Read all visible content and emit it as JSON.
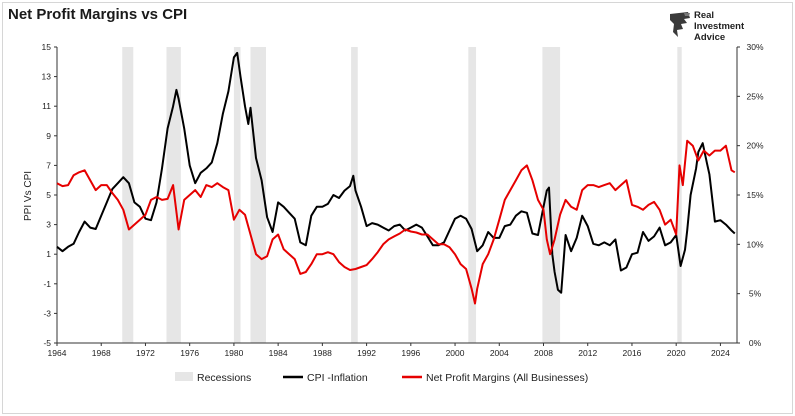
{
  "title": "Net Profit Margins vs CPI",
  "logo": {
    "line1": "Real",
    "line2": "Investment",
    "line3": "Advice"
  },
  "chart_data": {
    "type": "line",
    "title": "Net Profit Margins vs CPI",
    "ylabel": "PPI Vs CPI",
    "y2label": "",
    "xlim": [
      1964,
      2025.5
    ],
    "ylim": [
      -5,
      15
    ],
    "y2lim": [
      0,
      30
    ],
    "x_ticks": [
      1964,
      1968,
      1972,
      1976,
      1980,
      1984,
      1988,
      1992,
      1996,
      2000,
      2004,
      2008,
      2012,
      2016,
      2020,
      2024
    ],
    "y_ticks": [
      -5,
      -3,
      -1,
      1,
      3,
      5,
      7,
      9,
      11,
      13,
      15
    ],
    "y2_ticks": [
      "0%",
      "5%",
      "10%",
      "15%",
      "20%",
      "25%",
      "30%"
    ],
    "grid": false,
    "legend_position": "bottom",
    "recessions": [
      [
        1969.9,
        1970.9
      ],
      [
        1973.9,
        1975.2
      ],
      [
        1980.0,
        1980.6
      ],
      [
        1981.5,
        1982.9
      ],
      [
        1990.6,
        1991.2
      ],
      [
        2001.2,
        2001.9
      ],
      [
        2007.9,
        2009.5
      ],
      [
        2020.1,
        2020.5
      ]
    ],
    "series": [
      {
        "name": "Recessions",
        "type": "band",
        "color": "#e6e6e6"
      },
      {
        "name": "CPI -Inflation",
        "color": "#000000",
        "axis": "left",
        "points": [
          [
            1964,
            1.5
          ],
          [
            1964.5,
            1.2
          ],
          [
            1965,
            1.5
          ],
          [
            1965.5,
            1.7
          ],
          [
            1966,
            2.5
          ],
          [
            1966.5,
            3.2
          ],
          [
            1967,
            2.8
          ],
          [
            1967.5,
            2.7
          ],
          [
            1968,
            3.6
          ],
          [
            1968.5,
            4.5
          ],
          [
            1969,
            5.4
          ],
          [
            1969.5,
            5.8
          ],
          [
            1970,
            6.2
          ],
          [
            1970.5,
            5.8
          ],
          [
            1971,
            4.5
          ],
          [
            1971.5,
            4.2
          ],
          [
            1972,
            3.4
          ],
          [
            1972.5,
            3.3
          ],
          [
            1973,
            4.5
          ],
          [
            1973.5,
            6.8
          ],
          [
            1974,
            9.5
          ],
          [
            1974.5,
            11.0
          ],
          [
            1974.8,
            12.1
          ],
          [
            1975,
            11.5
          ],
          [
            1975.5,
            9.5
          ],
          [
            1976,
            7.0
          ],
          [
            1976.5,
            5.8
          ],
          [
            1977,
            6.5
          ],
          [
            1977.5,
            6.8
          ],
          [
            1978,
            7.2
          ],
          [
            1978.5,
            8.5
          ],
          [
            1979,
            10.5
          ],
          [
            1979.5,
            12.0
          ],
          [
            1980,
            14.3
          ],
          [
            1980.3,
            14.6
          ],
          [
            1980.6,
            13.0
          ],
          [
            1981,
            11.0
          ],
          [
            1981.3,
            9.8
          ],
          [
            1981.5,
            10.9
          ],
          [
            1982,
            7.5
          ],
          [
            1982.5,
            6.0
          ],
          [
            1983,
            3.5
          ],
          [
            1983.5,
            2.5
          ],
          [
            1984,
            4.5
          ],
          [
            1984.5,
            4.2
          ],
          [
            1985,
            3.8
          ],
          [
            1985.5,
            3.4
          ],
          [
            1986,
            1.8
          ],
          [
            1986.5,
            1.6
          ],
          [
            1987,
            3.6
          ],
          [
            1987.5,
            4.2
          ],
          [
            1988,
            4.2
          ],
          [
            1988.5,
            4.4
          ],
          [
            1989,
            5.0
          ],
          [
            1989.5,
            4.8
          ],
          [
            1990,
            5.3
          ],
          [
            1990.5,
            5.6
          ],
          [
            1990.8,
            6.3
          ],
          [
            1991,
            5.3
          ],
          [
            1991.5,
            4.2
          ],
          [
            1992,
            2.9
          ],
          [
            1992.5,
            3.1
          ],
          [
            1993,
            3.0
          ],
          [
            1993.5,
            2.8
          ],
          [
            1994,
            2.6
          ],
          [
            1994.5,
            2.9
          ],
          [
            1995,
            3.0
          ],
          [
            1995.5,
            2.6
          ],
          [
            1996,
            2.8
          ],
          [
            1996.5,
            3.0
          ],
          [
            1997,
            2.8
          ],
          [
            1997.5,
            2.2
          ],
          [
            1998,
            1.6
          ],
          [
            1998.5,
            1.6
          ],
          [
            1999,
            1.8
          ],
          [
            1999.5,
            2.6
          ],
          [
            2000,
            3.4
          ],
          [
            2000.5,
            3.6
          ],
          [
            2001,
            3.4
          ],
          [
            2001.5,
            2.7
          ],
          [
            2002,
            1.2
          ],
          [
            2002.5,
            1.6
          ],
          [
            2003,
            2.5
          ],
          [
            2003.5,
            2.1
          ],
          [
            2004,
            2.1
          ],
          [
            2004.5,
            2.9
          ],
          [
            2005,
            3.0
          ],
          [
            2005.5,
            3.6
          ],
          [
            2006,
            3.9
          ],
          [
            2006.5,
            3.8
          ],
          [
            2007,
            2.4
          ],
          [
            2007.5,
            2.3
          ],
          [
            2008,
            4.2
          ],
          [
            2008.3,
            5.3
          ],
          [
            2008.5,
            5.5
          ],
          [
            2008.8,
            1.0
          ],
          [
            2009,
            -0.2
          ],
          [
            2009.3,
            -1.4
          ],
          [
            2009.6,
            -1.6
          ],
          [
            2010,
            2.3
          ],
          [
            2010.5,
            1.2
          ],
          [
            2011,
            2.1
          ],
          [
            2011.5,
            3.6
          ],
          [
            2012,
            2.9
          ],
          [
            2012.5,
            1.7
          ],
          [
            2013,
            1.6
          ],
          [
            2013.5,
            1.8
          ],
          [
            2014,
            1.6
          ],
          [
            2014.5,
            2.0
          ],
          [
            2015,
            -0.1
          ],
          [
            2015.5,
            0.1
          ],
          [
            2016,
            1.0
          ],
          [
            2016.5,
            1.1
          ],
          [
            2017,
            2.5
          ],
          [
            2017.5,
            1.9
          ],
          [
            2018,
            2.2
          ],
          [
            2018.5,
            2.8
          ],
          [
            2019,
            1.6
          ],
          [
            2019.5,
            1.8
          ],
          [
            2020,
            2.3
          ],
          [
            2020.4,
            0.2
          ],
          [
            2020.8,
            1.3
          ],
          [
            2021,
            2.6
          ],
          [
            2021.3,
            5.0
          ],
          [
            2021.8,
            6.8
          ],
          [
            2022,
            7.9
          ],
          [
            2022.4,
            8.5
          ],
          [
            2022.8,
            7.1
          ],
          [
            2023,
            6.4
          ],
          [
            2023.5,
            3.2
          ],
          [
            2024,
            3.3
          ],
          [
            2024.5,
            3.0
          ],
          [
            2025,
            2.6
          ],
          [
            2025.3,
            2.4
          ]
        ]
      },
      {
        "name": "Net Profit Margins (All Businesses)",
        "color": "#e60000",
        "axis": "right",
        "points": [
          [
            1964,
            16.2
          ],
          [
            1964.5,
            15.9
          ],
          [
            1965,
            16.0
          ],
          [
            1965.5,
            17.0
          ],
          [
            1966,
            17.3
          ],
          [
            1966.5,
            17.5
          ],
          [
            1967,
            16.5
          ],
          [
            1967.5,
            15.5
          ],
          [
            1968,
            16.0
          ],
          [
            1968.5,
            16.0
          ],
          [
            1969,
            15.2
          ],
          [
            1969.5,
            14.5
          ],
          [
            1970,
            13.5
          ],
          [
            1970.5,
            11.5
          ],
          [
            1971,
            12.0
          ],
          [
            1971.5,
            12.5
          ],
          [
            1972,
            13.0
          ],
          [
            1972.5,
            14.5
          ],
          [
            1973,
            14.8
          ],
          [
            1973.5,
            14.5
          ],
          [
            1974,
            14.6
          ],
          [
            1974.5,
            16.0
          ],
          [
            1975,
            11.5
          ],
          [
            1975.5,
            14.5
          ],
          [
            1976,
            15.0
          ],
          [
            1976.5,
            15.5
          ],
          [
            1977,
            14.8
          ],
          [
            1977.5,
            16.0
          ],
          [
            1978,
            15.8
          ],
          [
            1978.5,
            16.2
          ],
          [
            1979,
            15.8
          ],
          [
            1979.5,
            15.5
          ],
          [
            1980,
            12.5
          ],
          [
            1980.5,
            13.5
          ],
          [
            1981,
            13.0
          ],
          [
            1981.5,
            11.0
          ],
          [
            1982,
            9.0
          ],
          [
            1982.5,
            8.5
          ],
          [
            1983,
            8.8
          ],
          [
            1983.5,
            10.5
          ],
          [
            1984,
            11.0
          ],
          [
            1984.5,
            9.5
          ],
          [
            1985,
            9.0
          ],
          [
            1985.5,
            8.5
          ],
          [
            1986,
            7.0
          ],
          [
            1986.5,
            7.2
          ],
          [
            1987,
            8.0
          ],
          [
            1987.5,
            9.0
          ],
          [
            1988,
            9.0
          ],
          [
            1988.5,
            9.2
          ],
          [
            1989,
            9.0
          ],
          [
            1989.5,
            8.2
          ],
          [
            1990,
            7.7
          ],
          [
            1990.5,
            7.4
          ],
          [
            1991,
            7.5
          ],
          [
            1991.5,
            7.7
          ],
          [
            1992,
            7.9
          ],
          [
            1992.5,
            8.5
          ],
          [
            1993,
            9.2
          ],
          [
            1993.5,
            10.0
          ],
          [
            1994,
            10.5
          ],
          [
            1994.5,
            10.8
          ],
          [
            1995,
            11.1
          ],
          [
            1995.5,
            11.5
          ],
          [
            1996,
            11.3
          ],
          [
            1996.5,
            11.2
          ],
          [
            1997,
            11.0
          ],
          [
            1997.5,
            11.0
          ],
          [
            1998,
            10.5
          ],
          [
            1998.5,
            10.0
          ],
          [
            1999,
            10.0
          ],
          [
            1999.5,
            9.7
          ],
          [
            2000,
            9.0
          ],
          [
            2000.5,
            8.0
          ],
          [
            2001,
            7.5
          ],
          [
            2001.5,
            5.5
          ],
          [
            2001.8,
            4.0
          ],
          [
            2002,
            5.5
          ],
          [
            2002.5,
            8.0
          ],
          [
            2003,
            9.0
          ],
          [
            2003.5,
            10.5
          ],
          [
            2004,
            12.5
          ],
          [
            2004.5,
            14.5
          ],
          [
            2005,
            15.5
          ],
          [
            2005.5,
            16.5
          ],
          [
            2006,
            17.5
          ],
          [
            2006.5,
            18.0
          ],
          [
            2007,
            16.5
          ],
          [
            2007.5,
            14.5
          ],
          [
            2008,
            13.5
          ],
          [
            2008.3,
            10.5
          ],
          [
            2008.6,
            9.0
          ],
          [
            2009,
            10.5
          ],
          [
            2009.5,
            13.0
          ],
          [
            2010,
            14.5
          ],
          [
            2010.5,
            13.8
          ],
          [
            2011,
            13.5
          ],
          [
            2011.5,
            15.5
          ],
          [
            2012,
            16.0
          ],
          [
            2012.5,
            16.0
          ],
          [
            2013,
            15.8
          ],
          [
            2013.5,
            16.0
          ],
          [
            2014,
            16.2
          ],
          [
            2014.5,
            15.5
          ],
          [
            2015,
            16.0
          ],
          [
            2015.5,
            16.5
          ],
          [
            2016,
            14.0
          ],
          [
            2016.5,
            13.8
          ],
          [
            2017,
            13.5
          ],
          [
            2017.5,
            14.0
          ],
          [
            2018,
            14.3
          ],
          [
            2018.5,
            13.5
          ],
          [
            2019,
            12.0
          ],
          [
            2019.5,
            12.5
          ],
          [
            2020,
            11.0
          ],
          [
            2020.3,
            18.0
          ],
          [
            2020.6,
            16.0
          ],
          [
            2021,
            20.5
          ],
          [
            2021.5,
            20.0
          ],
          [
            2022,
            18.5
          ],
          [
            2022.5,
            19.5
          ],
          [
            2023,
            19.0
          ],
          [
            2023.5,
            19.5
          ],
          [
            2024,
            19.5
          ],
          [
            2024.5,
            20.0
          ],
          [
            2025,
            17.5
          ],
          [
            2025.3,
            17.3
          ]
        ]
      }
    ]
  }
}
